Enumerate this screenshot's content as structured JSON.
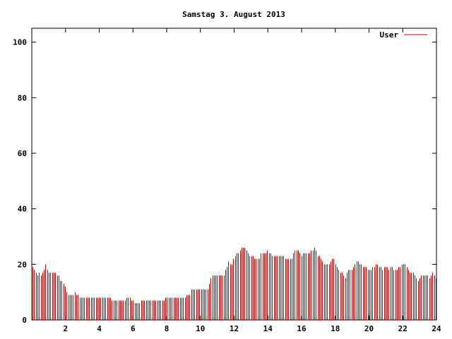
{
  "chart_data": {
    "type": "bar",
    "title": "Samstag 3. August 2013",
    "xlabel": "",
    "ylabel": "",
    "xlim": [
      0,
      24
    ],
    "ylim": [
      0,
      105
    ],
    "x_ticks": [
      2,
      4,
      6,
      8,
      10,
      12,
      14,
      16,
      18,
      20,
      22,
      24
    ],
    "y_ticks": [
      0,
      20,
      40,
      60,
      80,
      100
    ],
    "x_tick_labels": [
      "2",
      "4",
      "6",
      "8",
      "10",
      "12",
      "14",
      "16",
      "18",
      "20",
      "22",
      "24"
    ],
    "y_tick_labels": [
      "0",
      "20",
      "40",
      "60",
      "80",
      "100"
    ],
    "grid": false,
    "legend_position": "top-right",
    "series": [
      {
        "name": "User",
        "color": "#cc0000",
        "sample_interval_hours": 0.0833,
        "values": [
          19,
          18,
          17,
          16,
          17,
          16,
          17,
          18,
          20,
          18,
          17,
          17,
          17,
          17,
          17,
          16,
          16,
          14,
          14,
          13,
          12,
          10,
          9,
          9,
          9,
          9,
          10,
          9,
          9,
          8,
          8,
          8,
          8,
          8,
          8,
          8,
          8,
          8,
          8,
          8,
          8,
          8,
          8,
          8,
          8,
          8,
          8,
          8,
          8,
          7,
          7,
          7,
          7,
          7,
          7,
          7,
          7,
          7,
          8,
          8,
          8,
          7,
          7,
          6,
          6,
          6,
          6,
          7,
          7,
          7,
          7,
          7,
          7,
          7,
          7,
          7,
          7,
          7,
          7,
          7,
          7,
          7,
          8,
          8,
          8,
          8,
          8,
          8,
          8,
          8,
          8,
          8,
          8,
          8,
          8,
          9,
          9,
          9,
          11,
          11,
          11,
          11,
          11,
          11,
          11,
          11,
          11,
          11,
          11,
          13,
          15,
          16,
          16,
          16,
          16,
          16,
          16,
          16,
          16,
          18,
          19,
          21,
          20,
          20,
          22,
          23,
          24,
          24,
          25,
          26,
          26,
          26,
          25,
          24,
          23,
          23,
          23,
          22,
          22,
          22,
          22,
          24,
          24,
          24,
          24,
          25,
          24,
          24,
          23,
          23,
          23,
          23,
          23,
          23,
          23,
          23,
          22,
          22,
          22,
          22,
          22,
          24,
          25,
          25,
          25,
          24,
          23,
          24,
          24,
          24,
          24,
          24,
          25,
          25,
          26,
          25,
          23,
          23,
          22,
          21,
          20,
          20,
          20,
          20,
          21,
          22,
          22,
          20,
          19,
          18,
          17,
          17,
          16,
          15,
          17,
          18,
          18,
          18,
          19,
          20,
          21,
          21,
          20,
          20,
          19,
          19,
          19,
          18,
          18,
          18,
          19,
          19,
          20,
          20,
          19,
          19,
          18,
          19,
          19,
          19,
          18,
          19,
          19,
          18,
          18,
          18,
          19,
          19,
          20,
          20,
          20,
          19,
          18,
          17,
          17,
          17,
          16,
          15,
          14,
          15,
          16,
          16,
          16,
          16,
          16,
          15,
          16,
          17,
          16,
          15
        ]
      }
    ]
  }
}
